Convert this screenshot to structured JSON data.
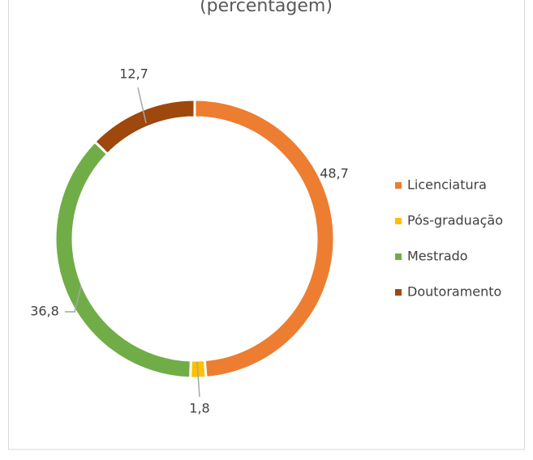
{
  "chart_data": {
    "type": "donut",
    "subtitle": "(percentagem)",
    "categories": [
      "Licenciatura",
      "Pós-graduação",
      "Mestrado",
      "Doutoramento"
    ],
    "values": [
      48.7,
      1.8,
      36.8,
      12.7
    ],
    "value_labels": [
      "48,7",
      "1,8",
      "36,8",
      "12,7"
    ],
    "colors": [
      "#ED7D31",
      "#FFC000",
      "#70AD47",
      "#9E480E"
    ],
    "legend": "right"
  }
}
